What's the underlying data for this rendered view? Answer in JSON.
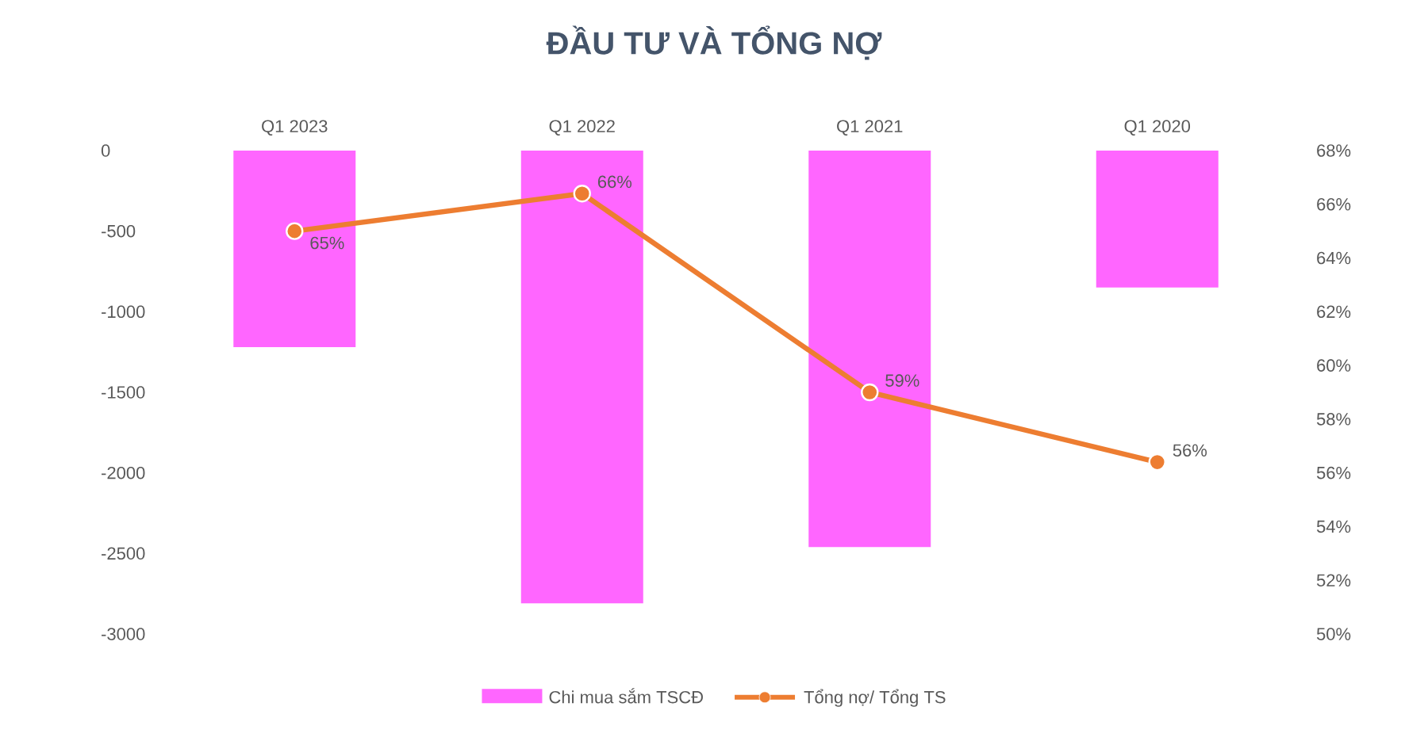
{
  "chart_data": {
    "type": "bar",
    "title": "ĐẦU TƯ VÀ TỔNG NỢ",
    "categories": [
      "Q1 2023",
      "Q1 2022",
      "Q1 2021",
      "Q1 2020"
    ],
    "series": [
      {
        "name": "Chi mua sắm TSCĐ",
        "color": "#ff66ff",
        "values": [
          -1220,
          -2810,
          -2460,
          -850
        ]
      },
      {
        "name": "Tổng nợ/ Tổng TS",
        "type": "line",
        "axis": "y2",
        "color": "#ed7d31",
        "values": [
          65,
          66.4,
          59,
          56.4
        ],
        "value_labels": [
          "65%",
          "66%",
          "59%",
          "56%"
        ]
      }
    ],
    "ylim": [
      -3000,
      0
    ],
    "yticks": [
      -3000,
      -2500,
      -2000,
      -1500,
      -1000,
      -500,
      0
    ],
    "y2lim": [
      50,
      68
    ],
    "y2ticks": [
      {
        "value": 50,
        "label": "50%"
      },
      {
        "value": 52,
        "label": "52%"
      },
      {
        "value": 54,
        "label": "54%"
      },
      {
        "value": 56,
        "label": "56%"
      },
      {
        "value": 58,
        "label": "58%"
      },
      {
        "value": 60,
        "label": "60%"
      },
      {
        "value": 62,
        "label": "62%"
      },
      {
        "value": 64,
        "label": "64%"
      },
      {
        "value": 66,
        "label": "66%"
      },
      {
        "value": 68,
        "label": "68%"
      }
    ],
    "marker": "circle",
    "legend": "bottom"
  }
}
